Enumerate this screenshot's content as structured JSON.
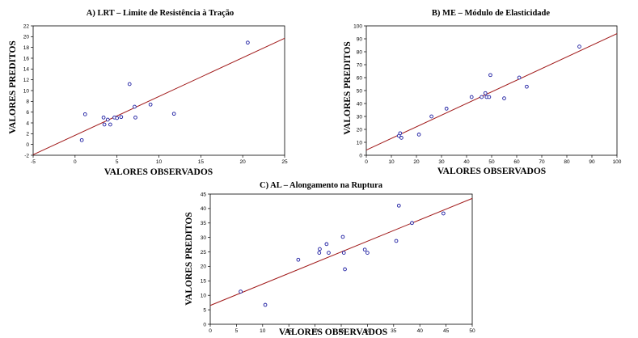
{
  "chart_data": [
    {
      "type": "scatter",
      "title": "A) LRT – Limite de Resistência à Tração",
      "xlabel": "VALORES OBSERVADOS",
      "ylabel": "VALORES PREDITOS",
      "xlim": [
        -5,
        25
      ],
      "ylim": [
        -2,
        22
      ],
      "xticks": [
        -5,
        0,
        5,
        10,
        15,
        20,
        25
      ],
      "yticks": [
        -2,
        0,
        2,
        4,
        6,
        8,
        10,
        12,
        14,
        16,
        18,
        20,
        22
      ],
      "grid": false,
      "fit_line": {
        "x": [
          -5,
          25
        ],
        "y": [
          -1.9,
          19.7
        ]
      },
      "points": {
        "x": [
          0.8,
          1.2,
          3.4,
          3.5,
          3.9,
          4.2,
          4.7,
          5.0,
          5.5,
          6.5,
          7.1,
          7.2,
          9.0,
          11.8,
          20.6
        ],
        "y": [
          0.8,
          5.6,
          5.0,
          3.7,
          4.6,
          3.7,
          5.0,
          4.9,
          5.1,
          11.2,
          7.0,
          5.0,
          7.4,
          5.7,
          18.9
        ]
      }
    },
    {
      "type": "scatter",
      "title": "B) ME – Módulo de Elasticidade",
      "xlabel": "VALORES OBSERVADOS",
      "ylabel": "VALORES PREDITOS",
      "xlim": [
        0,
        100
      ],
      "ylim": [
        0,
        100
      ],
      "xticks": [
        0,
        10,
        20,
        30,
        40,
        50,
        60,
        70,
        80,
        90,
        100
      ],
      "yticks": [
        0,
        10,
        20,
        30,
        40,
        50,
        60,
        70,
        80,
        90,
        100
      ],
      "grid": false,
      "fit_line": {
        "x": [
          0,
          100
        ],
        "y": [
          4,
          94
        ]
      },
      "points": {
        "x": [
          13,
          13.5,
          14,
          21,
          26,
          32,
          42,
          46,
          47.5,
          48,
          49,
          49.5,
          55,
          61,
          64,
          85
        ],
        "y": [
          15,
          17,
          13.5,
          16,
          30,
          36,
          45,
          45,
          48,
          45,
          45,
          62,
          44,
          60,
          53,
          84
        ]
      }
    },
    {
      "type": "scatter",
      "title": "C) AL – Alongamento na Ruptura",
      "xlabel": "VALORES OBSERVADOS",
      "ylabel": "VALORES PREDITOS",
      "xlim": [
        0,
        50
      ],
      "ylim": [
        0,
        45
      ],
      "xticks": [
        0,
        5,
        10,
        15,
        20,
        25,
        30,
        35,
        40,
        45,
        50
      ],
      "yticks": [
        0,
        5,
        10,
        15,
        20,
        25,
        30,
        35,
        40,
        45
      ],
      "grid": false,
      "fit_line": {
        "x": [
          0,
          50
        ],
        "y": [
          6.5,
          43.5
        ]
      },
      "points": {
        "x": [
          5.8,
          10.5,
          16.8,
          20.8,
          20.9,
          22.2,
          22.6,
          25.3,
          25.5,
          25.7,
          29.5,
          30.0,
          35.5,
          36.0,
          38.5,
          44.5
        ],
        "y": [
          11.3,
          6.7,
          22.3,
          24.7,
          26.0,
          27.7,
          24.7,
          30.2,
          24.7,
          19.0,
          25.8,
          24.7,
          28.8,
          41.0,
          35.0,
          38.3
        ]
      }
    }
  ]
}
